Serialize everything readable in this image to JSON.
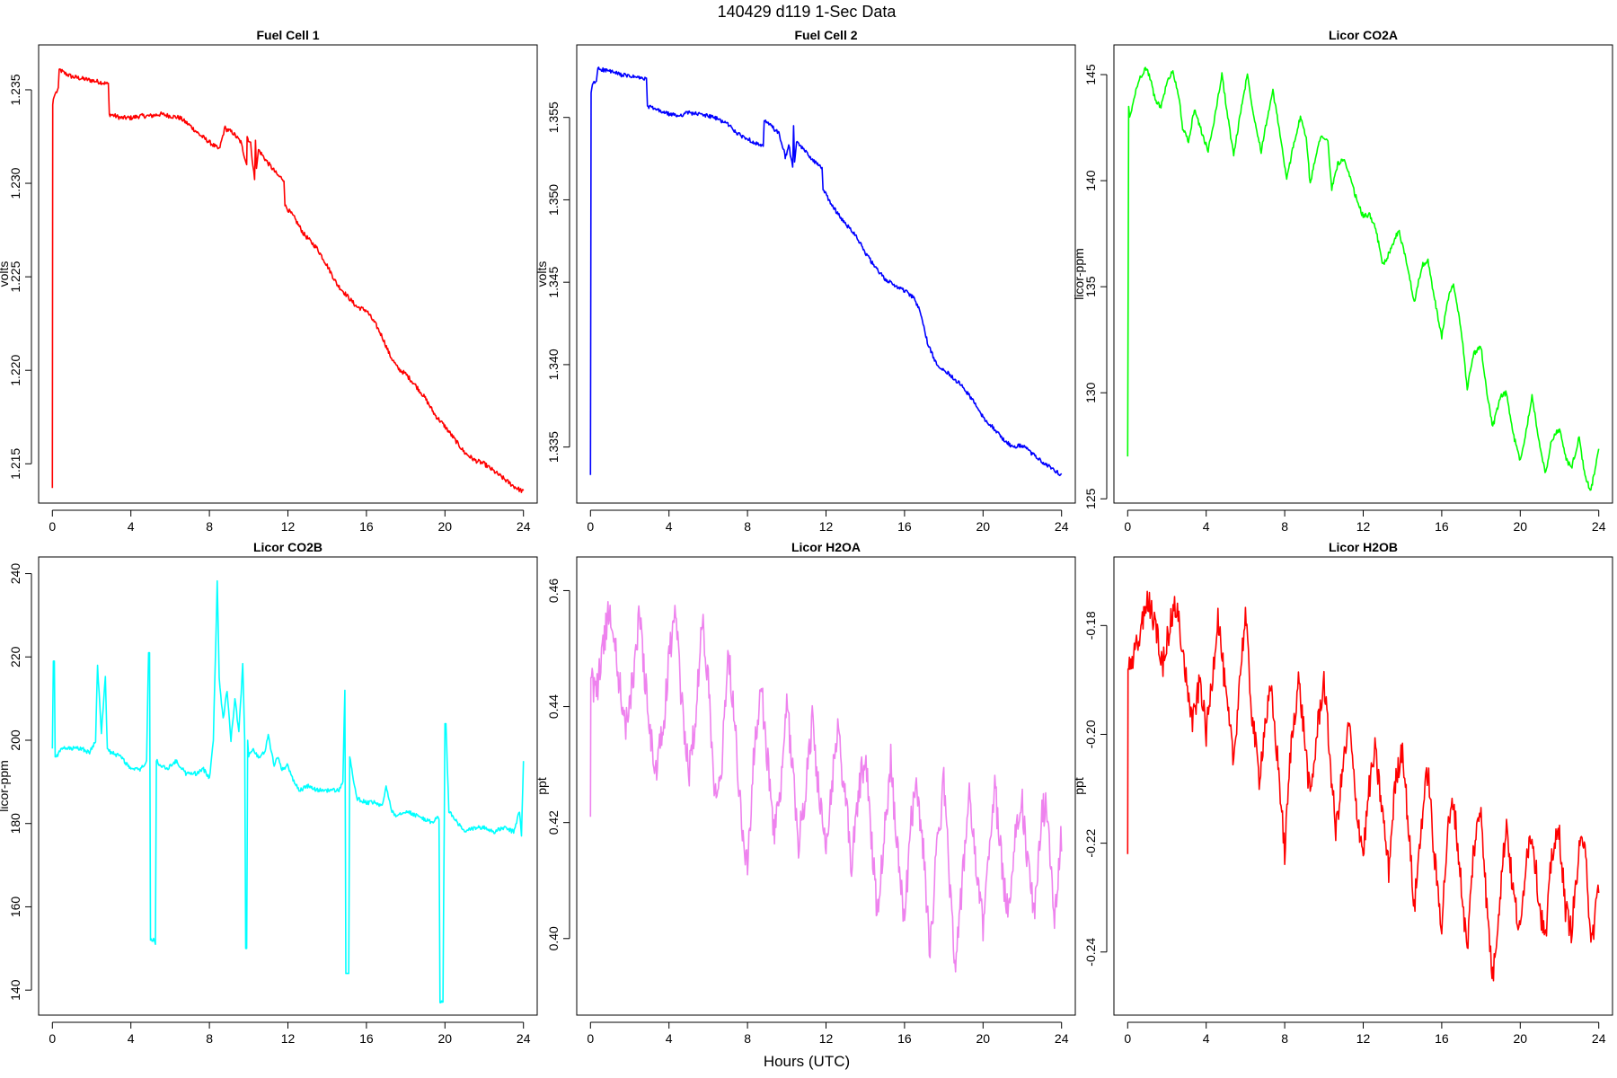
{
  "figure_title": "140429   d119   1-Sec Data",
  "x_axis_label": "Hours (UTC)",
  "chart_data": [
    {
      "type": "line",
      "title": "Fuel Cell 1",
      "ylabel": "volts",
      "color": "#ff0000",
      "xlim": [
        -0.7,
        24.7
      ],
      "ylim": [
        1.2129,
        1.2374
      ],
      "xticks": [
        0,
        4,
        8,
        12,
        16,
        20,
        24
      ],
      "yticks": [
        1.215,
        1.22,
        1.225,
        1.23,
        1.235
      ],
      "ytick_labels": [
        "1.215",
        "1.220",
        "1.225",
        "1.230",
        "1.235"
      ],
      "grid": false,
      "noise": 0.00012,
      "x": [
        0,
        0.02,
        0.05,
        0.15,
        0.3,
        0.35,
        0.6,
        1.0,
        1.5,
        2.0,
        2.5,
        2.85,
        2.9,
        3.5,
        4.0,
        4.5,
        5.0,
        5.5,
        6.0,
        6.5,
        7.0,
        7.5,
        8.0,
        8.5,
        8.8,
        8.85,
        9.2,
        9.6,
        9.9,
        9.92,
        10.1,
        10.3,
        10.35,
        10.4,
        10.5,
        10.9,
        11.5,
        11.8,
        11.85,
        12.3,
        12.8,
        13.5,
        14.0,
        14.5,
        15.0,
        15.5,
        16.0,
        16.5,
        16.8,
        17.2,
        17.6,
        18.0,
        18.5,
        19.0,
        19.5,
        20.0,
        20.5,
        21.0,
        21.5,
        22.0,
        22.5,
        23.0,
        23.5,
        24.0
      ],
      "y": [
        1.2137,
        1.2342,
        1.2345,
        1.2348,
        1.235,
        1.2361,
        1.2359,
        1.2357,
        1.2356,
        1.2355,
        1.2354,
        1.2353,
        1.2337,
        1.2335,
        1.2335,
        1.2336,
        1.2336,
        1.2337,
        1.2336,
        1.2335,
        1.2331,
        1.2326,
        1.2322,
        1.2318,
        1.233,
        1.2329,
        1.2327,
        1.2322,
        1.231,
        1.2325,
        1.2321,
        1.2302,
        1.2323,
        1.2308,
        1.2318,
        1.2312,
        1.2304,
        1.2302,
        1.2288,
        1.2282,
        1.2273,
        1.2265,
        1.2256,
        1.2246,
        1.224,
        1.2234,
        1.2232,
        1.2224,
        1.2218,
        1.2208,
        1.2201,
        1.2198,
        1.2192,
        1.2185,
        1.2176,
        1.217,
        1.2163,
        1.2156,
        1.2152,
        1.215,
        1.2146,
        1.2142,
        1.2138,
        1.2135
      ]
    },
    {
      "type": "line",
      "title": "Fuel Cell 2",
      "ylabel": "volts",
      "color": "#0000ff",
      "xlim": [
        -0.7,
        24.7
      ],
      "ylim": [
        1.3316,
        1.3594
      ],
      "xticks": [
        0,
        4,
        8,
        12,
        16,
        20,
        24
      ],
      "yticks": [
        1.335,
        1.34,
        1.345,
        1.35,
        1.355
      ],
      "ytick_labels": [
        "1.335",
        "1.340",
        "1.345",
        "1.350",
        "1.355"
      ],
      "grid": false,
      "noise": 0.00012,
      "x": [
        0,
        0.03,
        0.1,
        0.3,
        0.38,
        0.6,
        1.0,
        1.5,
        2.0,
        2.5,
        2.85,
        2.9,
        3.5,
        4.0,
        4.5,
        5.0,
        5.5,
        6.0,
        6.5,
        7.0,
        7.5,
        8.0,
        8.5,
        8.8,
        8.85,
        9.2,
        9.6,
        9.9,
        9.92,
        10.1,
        10.3,
        10.35,
        10.4,
        10.5,
        10.9,
        11.5,
        11.8,
        11.85,
        12.3,
        12.8,
        13.5,
        14.0,
        14.5,
        15.0,
        15.5,
        16.0,
        16.5,
        16.8,
        17.2,
        17.6,
        18.0,
        18.5,
        19.0,
        19.5,
        20.0,
        20.5,
        21.0,
        21.5,
        22.0,
        22.5,
        23.0,
        23.5,
        24.0
      ],
      "y": [
        1.3333,
        1.3565,
        1.357,
        1.3572,
        1.358,
        1.3579,
        1.3578,
        1.3576,
        1.3575,
        1.3574,
        1.3573,
        1.3557,
        1.3554,
        1.3552,
        1.3551,
        1.3553,
        1.3552,
        1.3551,
        1.3549,
        1.3546,
        1.354,
        1.3537,
        1.3534,
        1.3532,
        1.3548,
        1.3545,
        1.354,
        1.3528,
        1.3525,
        1.3533,
        1.352,
        1.3545,
        1.3523,
        1.3535,
        1.353,
        1.3522,
        1.352,
        1.3506,
        1.3497,
        1.3488,
        1.3479,
        1.3468,
        1.3459,
        1.3452,
        1.3448,
        1.3445,
        1.344,
        1.3432,
        1.3412,
        1.3401,
        1.3397,
        1.3392,
        1.3386,
        1.3378,
        1.3368,
        1.3362,
        1.3355,
        1.335,
        1.3351,
        1.3346,
        1.3341,
        1.3337,
        1.3333
      ]
    },
    {
      "type": "line",
      "title": "Licor CO2A",
      "ylabel": "licor-ppm",
      "color": "#00ff00",
      "xlim": [
        -0.7,
        24.7
      ],
      "ylim": [
        124.8,
        146.4
      ],
      "xticks": [
        0,
        4,
        8,
        12,
        16,
        20,
        24
      ],
      "yticks": [
        125,
        130,
        135,
        140,
        145
      ],
      "ytick_labels": [
        "125",
        "130",
        "135",
        "140",
        "145"
      ],
      "grid": false,
      "noise": 0.12,
      "x": [
        0,
        0.05,
        0.1,
        0.2,
        0.35,
        0.6,
        0.9,
        1.1,
        1.4,
        1.7,
        2.0,
        2.3,
        2.6,
        2.8,
        3.1,
        3.4,
        3.8,
        4.1,
        4.4,
        4.8,
        5.1,
        5.4,
        5.8,
        6.1,
        6.4,
        6.8,
        7.1,
        7.4,
        7.8,
        8.1,
        8.4,
        8.8,
        9.1,
        9.3,
        9.6,
        9.9,
        10.2,
        10.4,
        10.7,
        11.0,
        11.3,
        11.7,
        12.0,
        12.3,
        12.6,
        13.0,
        13.5,
        13.8,
        14.2,
        14.6,
        15.0,
        15.3,
        15.6,
        16.0,
        16.3,
        16.6,
        17.0,
        17.3,
        17.6,
        18.0,
        18.3,
        18.6,
        19.0,
        19.3,
        19.6,
        20.0,
        20.3,
        20.6,
        21.0,
        21.3,
        21.6,
        22.0,
        22.3,
        22.6,
        23.0,
        23.3,
        23.6,
        24.0
      ],
      "y": [
        127.0,
        143.5,
        143.0,
        143.3,
        144.0,
        144.8,
        145.3,
        145.0,
        143.8,
        143.5,
        144.6,
        145.2,
        144.0,
        142.5,
        141.8,
        143.4,
        142.2,
        141.4,
        142.8,
        145.0,
        143.0,
        141.2,
        143.5,
        145.0,
        143.2,
        141.4,
        142.9,
        144.2,
        142.0,
        140.0,
        141.5,
        143.0,
        142.0,
        139.8,
        141.3,
        142.2,
        141.8,
        139.6,
        140.8,
        141.0,
        140.2,
        139.0,
        138.3,
        138.4,
        137.9,
        136.0,
        136.9,
        137.7,
        136.2,
        134.3,
        136.0,
        136.2,
        134.6,
        132.6,
        134.4,
        135.1,
        132.9,
        130.2,
        131.8,
        132.2,
        130.0,
        128.4,
        129.8,
        130.0,
        128.2,
        126.8,
        128.2,
        129.9,
        127.4,
        126.2,
        127.8,
        128.3,
        127.0,
        126.4,
        127.9,
        126.0,
        125.4,
        127.3
      ]
    },
    {
      "type": "line",
      "title": "Licor CO2B",
      "ylabel": "licor-ppm",
      "color": "#00ffff",
      "xlim": [
        -0.7,
        24.7
      ],
      "ylim": [
        134.0,
        244.0
      ],
      "xticks": [
        0,
        4,
        8,
        12,
        16,
        20,
        24
      ],
      "yticks": [
        140,
        160,
        180,
        200,
        220,
        240
      ],
      "ytick_labels": [
        "140",
        "160",
        "180",
        "200",
        "220",
        "240"
      ],
      "grid": false,
      "noise": 0.5,
      "x": [
        0,
        0.05,
        0.1,
        0.14,
        0.2,
        0.5,
        1.0,
        1.5,
        1.9,
        2.2,
        2.3,
        2.5,
        2.7,
        2.8,
        3.0,
        3.5,
        4.0,
        4.5,
        4.8,
        4.9,
        4.95,
        5.0,
        5.2,
        5.25,
        5.3,
        5.8,
        6.3,
        6.8,
        7.3,
        7.7,
        8.0,
        8.2,
        8.4,
        8.5,
        8.7,
        8.9,
        9.1,
        9.3,
        9.5,
        9.7,
        9.8,
        9.85,
        9.9,
        9.95,
        10.0,
        10.05,
        10.2,
        10.5,
        10.8,
        11.0,
        11.3,
        11.5,
        11.7,
        12.0,
        12.3,
        12.6,
        13.0,
        13.5,
        14.0,
        14.4,
        14.6,
        14.8,
        14.9,
        14.95,
        15.0,
        15.1,
        15.15,
        15.5,
        16.0,
        16.5,
        16.8,
        17.0,
        17.3,
        17.5,
        18.0,
        18.5,
        19.0,
        19.4,
        19.6,
        19.7,
        19.75,
        19.9,
        20.0,
        20.05,
        20.2,
        20.5,
        21.0,
        21.5,
        22.0,
        22.5,
        23.0,
        23.5,
        23.8,
        23.9,
        24.0
      ],
      "y": [
        198,
        219,
        219,
        196,
        196,
        198,
        198,
        198,
        197,
        200,
        218,
        202,
        215,
        198,
        197,
        196,
        193,
        193,
        195,
        221,
        221,
        152,
        152,
        151,
        195,
        193,
        195,
        192,
        192,
        193,
        191,
        200,
        238,
        215,
        205,
        212,
        200,
        210,
        202,
        218,
        200,
        150,
        150,
        200,
        196,
        197,
        198,
        196,
        197,
        201,
        194,
        196,
        193,
        194,
        190,
        188,
        189,
        188,
        188,
        188,
        188,
        190,
        212,
        144,
        144,
        144,
        196,
        186,
        185,
        185,
        184,
        189,
        183,
        182,
        183,
        182,
        181,
        180,
        182,
        181,
        137,
        137,
        204,
        204,
        183,
        181,
        178,
        179,
        179,
        178,
        179,
        178,
        183,
        177,
        195
      ]
    },
    {
      "type": "line",
      "title": "Licor H2OA",
      "ylabel": "ppt",
      "color": "#ee82ee",
      "xlim": [
        -0.7,
        24.7
      ],
      "ylim": [
        0.3868,
        0.4658
      ],
      "xticks": [
        0,
        4,
        8,
        12,
        16,
        20,
        24
      ],
      "yticks": [
        0.4,
        0.42,
        0.44,
        0.46
      ],
      "ytick_labels": [
        "0.40",
        "0.42",
        "0.44",
        "0.46"
      ],
      "grid": false,
      "noise": 0.003,
      "x": [
        0,
        0.02,
        0.05,
        0.3,
        0.6,
        1.0,
        1.4,
        1.8,
        2.2,
        2.5,
        2.9,
        3.3,
        3.7,
        4.0,
        4.3,
        4.6,
        5.0,
        5.4,
        5.7,
        6.0,
        6.3,
        6.7,
        7.0,
        7.3,
        7.7,
        8.0,
        8.3,
        8.7,
        9.0,
        9.3,
        9.7,
        10.0,
        10.3,
        10.6,
        11.0,
        11.3,
        11.6,
        12.0,
        12.3,
        12.6,
        13.0,
        13.3,
        13.6,
        14.0,
        14.3,
        14.6,
        15.0,
        15.3,
        15.6,
        16.0,
        16.3,
        16.6,
        17.0,
        17.3,
        17.6,
        18.0,
        18.3,
        18.6,
        19.0,
        19.3,
        19.6,
        20.0,
        20.3,
        20.6,
        21.0,
        21.3,
        21.6,
        22.0,
        22.3,
        22.6,
        23.0,
        23.3,
        23.6,
        24.0
      ],
      "y": [
        0.421,
        0.445,
        0.445,
        0.442,
        0.45,
        0.457,
        0.446,
        0.436,
        0.446,
        0.456,
        0.44,
        0.428,
        0.436,
        0.448,
        0.457,
        0.443,
        0.428,
        0.44,
        0.455,
        0.445,
        0.426,
        0.43,
        0.45,
        0.44,
        0.42,
        0.412,
        0.43,
        0.443,
        0.432,
        0.418,
        0.425,
        0.44,
        0.43,
        0.416,
        0.427,
        0.438,
        0.426,
        0.414,
        0.427,
        0.436,
        0.424,
        0.412,
        0.424,
        0.432,
        0.418,
        0.405,
        0.419,
        0.431,
        0.416,
        0.403,
        0.419,
        0.428,
        0.413,
        0.398,
        0.413,
        0.427,
        0.41,
        0.395,
        0.412,
        0.426,
        0.413,
        0.402,
        0.416,
        0.426,
        0.411,
        0.404,
        0.418,
        0.423,
        0.412,
        0.404,
        0.422,
        0.423,
        0.402,
        0.418
      ]
    },
    {
      "type": "line",
      "title": "Licor H2OB",
      "ylabel": "ppt",
      "color": "#ff0000",
      "xlim": [
        -0.7,
        24.7
      ],
      "ylim": [
        -0.2516,
        -0.1674
      ],
      "xticks": [
        0,
        4,
        8,
        12,
        16,
        20,
        24
      ],
      "yticks": [
        -0.24,
        -0.22,
        -0.2,
        -0.18
      ],
      "ytick_labels": [
        "-0.24",
        "-0.22",
        "-0.20",
        "-0.18"
      ],
      "grid": false,
      "noise": 0.0025,
      "x": [
        0,
        0.02,
        0.05,
        0.3,
        0.6,
        1.0,
        1.4,
        1.8,
        2.2,
        2.5,
        2.9,
        3.3,
        3.7,
        4.0,
        4.3,
        4.6,
        5.0,
        5.4,
        5.7,
        6.0,
        6.3,
        6.7,
        7.0,
        7.3,
        7.7,
        8.0,
        8.3,
        8.7,
        9.0,
        9.3,
        9.7,
        10.0,
        10.3,
        10.6,
        11.0,
        11.3,
        11.6,
        12.0,
        12.3,
        12.6,
        13.0,
        13.3,
        13.6,
        14.0,
        14.3,
        14.6,
        15.0,
        15.3,
        15.6,
        16.0,
        16.3,
        16.6,
        17.0,
        17.3,
        17.6,
        18.0,
        18.3,
        18.6,
        19.0,
        19.3,
        19.6,
        20.0,
        20.3,
        20.6,
        21.0,
        21.3,
        21.6,
        22.0,
        22.3,
        22.6,
        23.0,
        23.3,
        23.6,
        24.0
      ],
      "y": [
        -0.222,
        -0.188,
        -0.188,
        -0.186,
        -0.182,
        -0.175,
        -0.18,
        -0.187,
        -0.179,
        -0.176,
        -0.188,
        -0.198,
        -0.19,
        -0.2,
        -0.19,
        -0.178,
        -0.193,
        -0.205,
        -0.19,
        -0.178,
        -0.195,
        -0.208,
        -0.198,
        -0.192,
        -0.207,
        -0.222,
        -0.203,
        -0.19,
        -0.2,
        -0.212,
        -0.198,
        -0.19,
        -0.204,
        -0.218,
        -0.205,
        -0.198,
        -0.212,
        -0.222,
        -0.21,
        -0.203,
        -0.215,
        -0.225,
        -0.21,
        -0.202,
        -0.217,
        -0.232,
        -0.215,
        -0.206,
        -0.222,
        -0.235,
        -0.218,
        -0.212,
        -0.228,
        -0.24,
        -0.222,
        -0.213,
        -0.232,
        -0.245,
        -0.228,
        -0.216,
        -0.228,
        -0.237,
        -0.222,
        -0.218,
        -0.232,
        -0.238,
        -0.222,
        -0.218,
        -0.232,
        -0.236,
        -0.222,
        -0.218,
        -0.24,
        -0.227
      ]
    }
  ]
}
